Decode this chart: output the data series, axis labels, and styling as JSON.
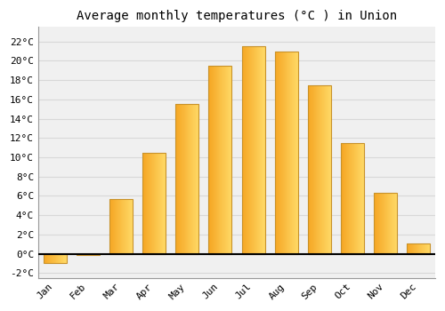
{
  "title": "Average monthly temperatures (°C ) in Union",
  "months": [
    "Jan",
    "Feb",
    "Mar",
    "Apr",
    "May",
    "Jun",
    "Jul",
    "Aug",
    "Sep",
    "Oct",
    "Nov",
    "Dec"
  ],
  "values": [
    -1.0,
    -0.1,
    5.7,
    10.5,
    15.5,
    19.5,
    21.5,
    21.0,
    17.5,
    11.5,
    6.3,
    1.1
  ],
  "bar_color_left": "#F5A623",
  "bar_color_right": "#FFD966",
  "bar_edge_color": "#C8922A",
  "background_color": "#ffffff",
  "plot_bg_color": "#f0f0f0",
  "grid_color": "#d8d8d8",
  "ylim": [
    -2.5,
    23.5
  ],
  "yticks": [
    -2,
    0,
    2,
    4,
    6,
    8,
    10,
    12,
    14,
    16,
    18,
    20,
    22
  ],
  "ytick_labels": [
    "-2°C",
    "0°C",
    "2°C",
    "4°C",
    "6°C",
    "8°C",
    "10°C",
    "12°C",
    "14°C",
    "16°C",
    "18°C",
    "20°C",
    "22°C"
  ],
  "title_fontsize": 10,
  "tick_fontsize": 8,
  "zero_line_color": "#000000",
  "spine_color": "#999999"
}
